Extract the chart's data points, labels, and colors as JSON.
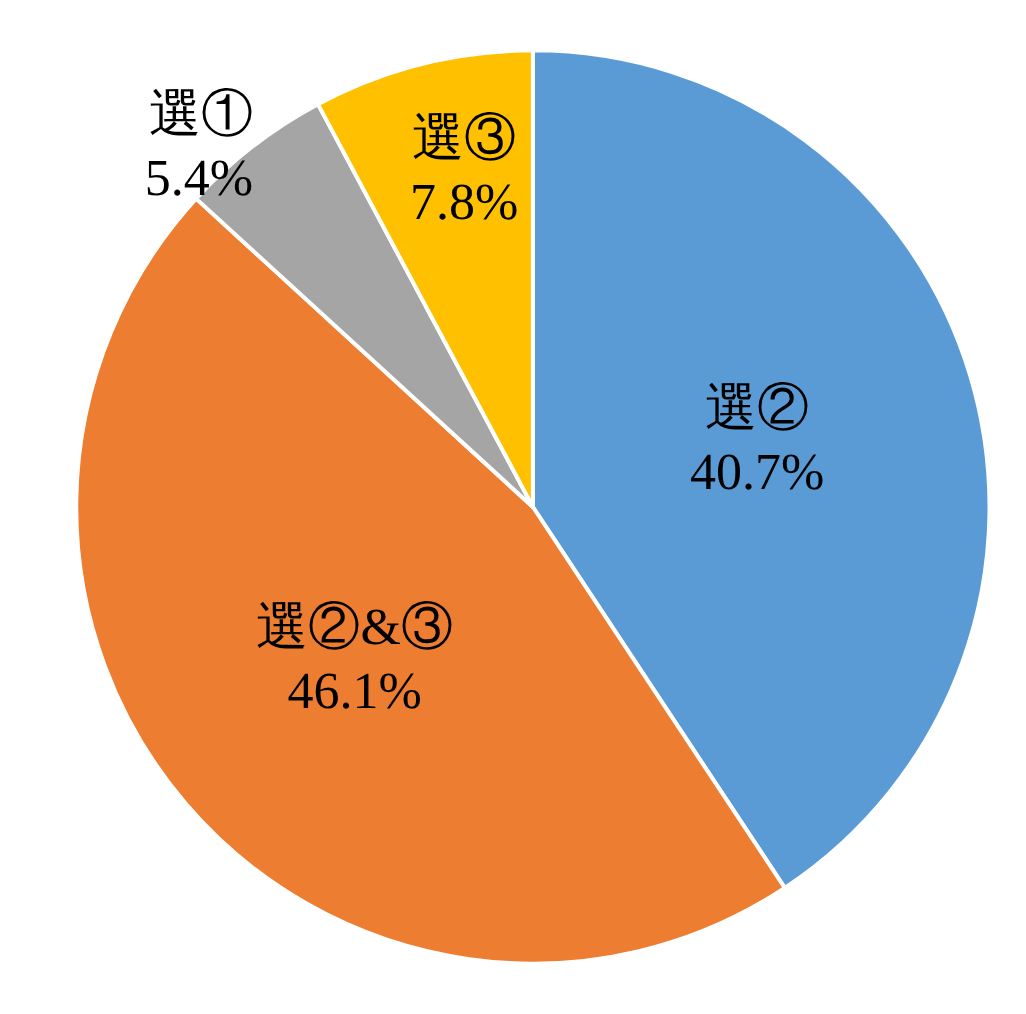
{
  "chart_data": {
    "type": "pie",
    "categories": [
      "選②",
      "選②&③",
      "選①",
      "選③"
    ],
    "values": [
      40.7,
      46.1,
      5.4,
      7.8
    ],
    "colors": [
      "#5b9bd5",
      "#ed7d31",
      "#a5a5a5",
      "#ffc000"
    ],
    "value_labels": [
      "40.7%",
      "46.1%",
      "5.4%",
      "7.8%"
    ],
    "legend": false
  }
}
